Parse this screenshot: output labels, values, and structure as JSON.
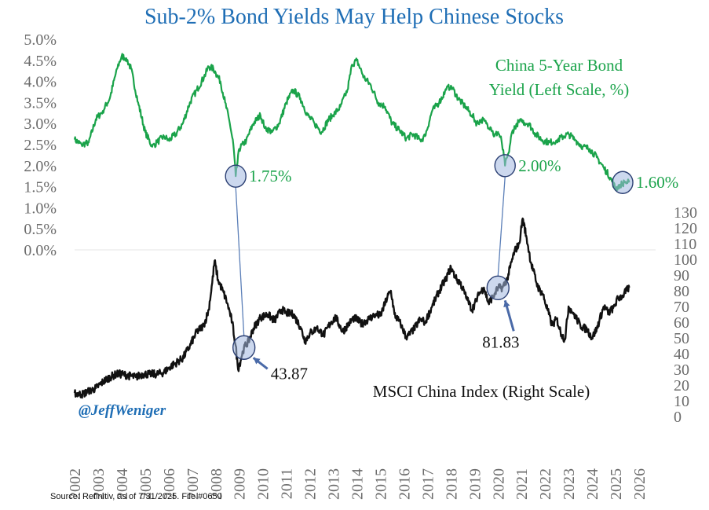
{
  "chart_data": {
    "type": "line",
    "title": "Sub-2% Bond Yields May Help Chinese Stocks",
    "source": "Source: Refinitiv, as of 7/31/2025. File #0650",
    "watermark": "@JeffWeniger",
    "x_ticks": [
      "2002",
      "2003",
      "2004",
      "2005",
      "2006",
      "2007",
      "2008",
      "2009",
      "2010",
      "2011",
      "2012",
      "2013",
      "2014",
      "2015",
      "2016",
      "2017",
      "2018",
      "2019",
      "2020",
      "2021",
      "2022",
      "2023",
      "2024",
      "2025",
      "2026"
    ],
    "xlim": [
      2002,
      2026
    ],
    "left_axis": {
      "ticks": [
        "0.0%",
        "0.5%",
        "1.0%",
        "1.5%",
        "2.0%",
        "2.5%",
        "3.0%",
        "3.5%",
        "4.0%",
        "4.5%",
        "5.0%"
      ],
      "ylim": [
        0,
        5
      ]
    },
    "right_axis": {
      "ticks": [
        "0",
        "10",
        "20",
        "30",
        "40",
        "50",
        "60",
        "70",
        "80",
        "90",
        "100",
        "110",
        "120",
        "130"
      ],
      "ylim": [
        0,
        130
      ]
    },
    "series": [
      {
        "name": "China 5-Year Bond Yield (Left Scale, %)",
        "label_line1": "China 5-Year Bond",
        "label_line2": "Yield (Left Scale, %)",
        "axis": "left",
        "color": "#1aa34a",
        "points": [
          [
            2002.0,
            2.62
          ],
          [
            2002.3,
            2.5
          ],
          [
            2002.6,
            2.55
          ],
          [
            2002.9,
            3.1
          ],
          [
            2003.2,
            3.3
          ],
          [
            2003.5,
            3.6
          ],
          [
            2003.8,
            4.3
          ],
          [
            2004.0,
            4.6
          ],
          [
            2004.2,
            4.55
          ],
          [
            2004.4,
            4.3
          ],
          [
            2004.7,
            3.5
          ],
          [
            2005.0,
            2.8
          ],
          [
            2005.3,
            2.45
          ],
          [
            2005.5,
            2.55
          ],
          [
            2005.8,
            2.7
          ],
          [
            2006.0,
            2.6
          ],
          [
            2006.3,
            2.75
          ],
          [
            2006.6,
            3.0
          ],
          [
            2006.9,
            3.5
          ],
          [
            2007.2,
            3.8
          ],
          [
            2007.5,
            4.1
          ],
          [
            2007.7,
            4.35
          ],
          [
            2007.9,
            4.3
          ],
          [
            2008.0,
            4.2
          ],
          [
            2008.2,
            4.0
          ],
          [
            2008.4,
            3.5
          ],
          [
            2008.6,
            3.0
          ],
          [
            2008.75,
            2.5
          ],
          [
            2008.85,
            1.75
          ],
          [
            2009.0,
            2.4
          ],
          [
            2009.3,
            2.6
          ],
          [
            2009.6,
            3.0
          ],
          [
            2009.9,
            3.2
          ],
          [
            2010.1,
            2.9
          ],
          [
            2010.4,
            2.8
          ],
          [
            2010.7,
            3.0
          ],
          [
            2011.0,
            3.5
          ],
          [
            2011.3,
            3.8
          ],
          [
            2011.6,
            3.6
          ],
          [
            2011.9,
            3.2
          ],
          [
            2012.2,
            3.0
          ],
          [
            2012.5,
            2.8
          ],
          [
            2012.8,
            3.1
          ],
          [
            2013.0,
            3.2
          ],
          [
            2013.3,
            3.4
          ],
          [
            2013.6,
            3.8
          ],
          [
            2013.8,
            4.4
          ],
          [
            2014.0,
            4.5
          ],
          [
            2014.3,
            4.1
          ],
          [
            2014.6,
            3.9
          ],
          [
            2014.9,
            3.5
          ],
          [
            2015.2,
            3.4
          ],
          [
            2015.5,
            3.0
          ],
          [
            2015.8,
            2.85
          ],
          [
            2016.1,
            2.65
          ],
          [
            2016.4,
            2.75
          ],
          [
            2016.7,
            2.6
          ],
          [
            2016.9,
            2.7
          ],
          [
            2017.2,
            3.3
          ],
          [
            2017.5,
            3.5
          ],
          [
            2017.8,
            3.8
          ],
          [
            2018.0,
            3.9
          ],
          [
            2018.3,
            3.6
          ],
          [
            2018.6,
            3.4
          ],
          [
            2018.9,
            3.2
          ],
          [
            2019.1,
            3.0
          ],
          [
            2019.3,
            3.1
          ],
          [
            2019.5,
            3.0
          ],
          [
            2019.7,
            2.9
          ],
          [
            2019.85,
            2.7
          ],
          [
            2020.0,
            2.8
          ],
          [
            2020.15,
            2.6
          ],
          [
            2020.3,
            2.0
          ],
          [
            2020.45,
            2.3
          ],
          [
            2020.6,
            2.8
          ],
          [
            2020.8,
            3.0
          ],
          [
            2021.0,
            3.05
          ],
          [
            2021.3,
            3.0
          ],
          [
            2021.6,
            2.75
          ],
          [
            2021.9,
            2.6
          ],
          [
            2022.2,
            2.55
          ],
          [
            2022.5,
            2.6
          ],
          [
            2022.8,
            2.7
          ],
          [
            2023.0,
            2.75
          ],
          [
            2023.3,
            2.6
          ],
          [
            2023.6,
            2.45
          ],
          [
            2023.9,
            2.4
          ],
          [
            2024.2,
            2.2
          ],
          [
            2024.5,
            1.95
          ],
          [
            2024.8,
            1.7
          ],
          [
            2025.0,
            1.45
          ],
          [
            2025.2,
            1.55
          ],
          [
            2025.4,
            1.6
          ],
          [
            2025.58,
            1.6
          ]
        ]
      },
      {
        "name": "MSCI China Index (Right Scale)",
        "axis": "right",
        "color": "#111111",
        "points": [
          [
            2002.0,
            15
          ],
          [
            2002.3,
            14
          ],
          [
            2002.6,
            16
          ],
          [
            2002.9,
            18
          ],
          [
            2003.2,
            22
          ],
          [
            2003.5,
            25
          ],
          [
            2003.8,
            27
          ],
          [
            2004.0,
            27
          ],
          [
            2004.3,
            26
          ],
          [
            2004.6,
            25
          ],
          [
            2004.9,
            27
          ],
          [
            2005.2,
            27
          ],
          [
            2005.5,
            27
          ],
          [
            2005.8,
            28
          ],
          [
            2006.0,
            31
          ],
          [
            2006.3,
            34
          ],
          [
            2006.6,
            37
          ],
          [
            2006.9,
            45
          ],
          [
            2007.2,
            54
          ],
          [
            2007.5,
            58
          ],
          [
            2007.7,
            68
          ],
          [
            2007.85,
            85
          ],
          [
            2007.95,
            99
          ],
          [
            2008.1,
            87
          ],
          [
            2008.3,
            80
          ],
          [
            2008.5,
            72
          ],
          [
            2008.7,
            60
          ],
          [
            2008.85,
            45
          ],
          [
            2008.95,
            30
          ],
          [
            2009.1,
            38
          ],
          [
            2009.2,
            43.87
          ],
          [
            2009.4,
            48
          ],
          [
            2009.6,
            56
          ],
          [
            2009.9,
            63
          ],
          [
            2010.2,
            65
          ],
          [
            2010.5,
            61
          ],
          [
            2010.8,
            68
          ],
          [
            2011.0,
            66
          ],
          [
            2011.3,
            65
          ],
          [
            2011.6,
            57
          ],
          [
            2011.8,
            48
          ],
          [
            2012.0,
            53
          ],
          [
            2012.3,
            56
          ],
          [
            2012.6,
            52
          ],
          [
            2012.9,
            60
          ],
          [
            2013.1,
            63
          ],
          [
            2013.4,
            54
          ],
          [
            2013.7,
            60
          ],
          [
            2013.9,
            63
          ],
          [
            2014.2,
            59
          ],
          [
            2014.5,
            62
          ],
          [
            2014.8,
            65
          ],
          [
            2015.0,
            64
          ],
          [
            2015.3,
            76
          ],
          [
            2015.45,
            80
          ],
          [
            2015.6,
            65
          ],
          [
            2015.9,
            58
          ],
          [
            2016.1,
            50
          ],
          [
            2016.4,
            55
          ],
          [
            2016.7,
            62
          ],
          [
            2016.9,
            60
          ],
          [
            2017.2,
            70
          ],
          [
            2017.5,
            80
          ],
          [
            2017.8,
            88
          ],
          [
            2018.0,
            95
          ],
          [
            2018.2,
            88
          ],
          [
            2018.4,
            85
          ],
          [
            2018.7,
            74
          ],
          [
            2018.9,
            68
          ],
          [
            2019.2,
            78
          ],
          [
            2019.4,
            82
          ],
          [
            2019.6,
            72
          ],
          [
            2019.85,
            78
          ],
          [
            2020.0,
            81.83
          ],
          [
            2020.2,
            82
          ],
          [
            2020.4,
            88
          ],
          [
            2020.7,
            105
          ],
          [
            2020.9,
            110
          ],
          [
            2021.05,
            126
          ],
          [
            2021.2,
            115
          ],
          [
            2021.4,
            98
          ],
          [
            2021.7,
            82
          ],
          [
            2021.9,
            78
          ],
          [
            2022.1,
            68
          ],
          [
            2022.3,
            58
          ],
          [
            2022.5,
            62
          ],
          [
            2022.7,
            52
          ],
          [
            2022.85,
            49
          ],
          [
            2023.0,
            70
          ],
          [
            2023.2,
            66
          ],
          [
            2023.5,
            58
          ],
          [
            2023.8,
            55
          ],
          [
            2024.0,
            50
          ],
          [
            2024.2,
            56
          ],
          [
            2024.5,
            70
          ],
          [
            2024.7,
            66
          ],
          [
            2024.9,
            69
          ],
          [
            2025.1,
            75
          ],
          [
            2025.3,
            77
          ],
          [
            2025.58,
            82
          ]
        ]
      }
    ],
    "annotations": [
      {
        "series": "yield",
        "x": 2008.85,
        "y": 1.75,
        "label": "1.75%"
      },
      {
        "series": "yield",
        "x": 2020.3,
        "y": 2.0,
        "label": "2.00%"
      },
      {
        "series": "yield",
        "x": 2025.3,
        "y": 1.6,
        "label": "1.60%"
      },
      {
        "series": "msci",
        "x": 2009.2,
        "y": 43.87,
        "label": "43.87"
      },
      {
        "series": "msci",
        "x": 2020.0,
        "y": 81.83,
        "label": "81.83"
      }
    ],
    "msci_label": "MSCI China Index (Right Scale)"
  }
}
